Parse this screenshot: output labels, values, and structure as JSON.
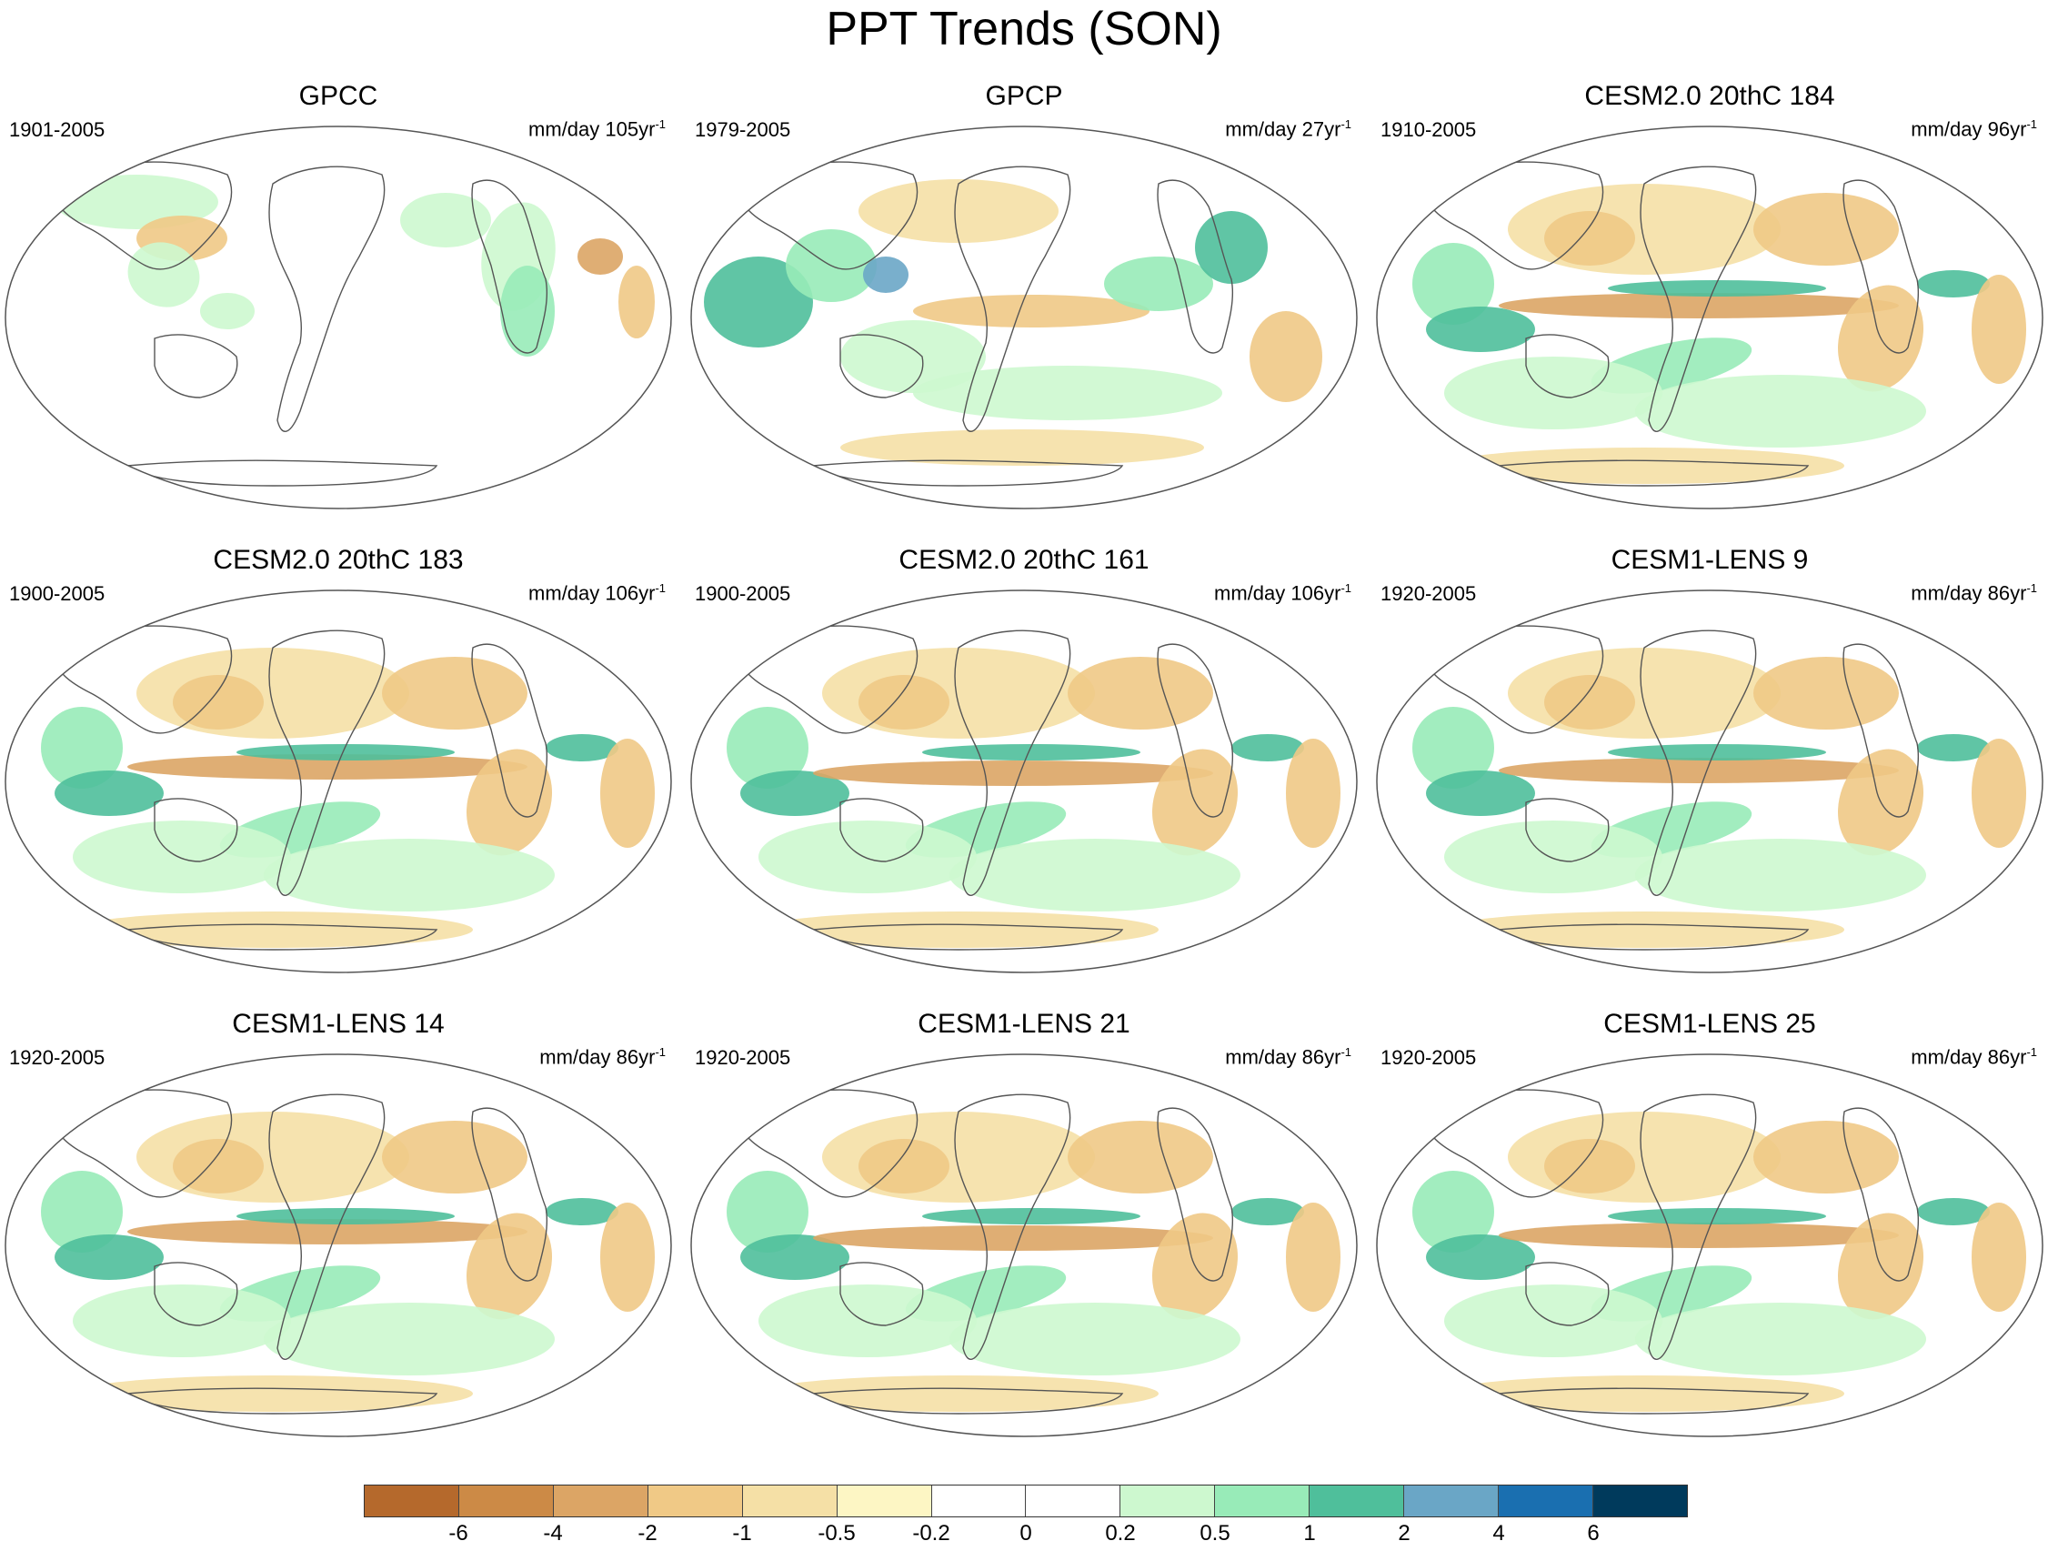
{
  "title": "PPT Trends (SON)",
  "panels": [
    {
      "title": "GPCC",
      "period": "1901-2005",
      "units": "mm/day 105yr",
      "exp": "-1",
      "pattern": "obs-land"
    },
    {
      "title": "GPCP",
      "period": "1979-2005",
      "units": "mm/day 27yr",
      "exp": "-1",
      "pattern": "wet-tropics"
    },
    {
      "title": "CESM2.0 20thC 184",
      "period": "1910-2005",
      "units": "mm/day 96yr",
      "exp": "-1",
      "pattern": "model"
    },
    {
      "title": "CESM2.0 20thC 183",
      "period": "1900-2005",
      "units": "mm/day 106yr",
      "exp": "-1",
      "pattern": "model"
    },
    {
      "title": "CESM2.0 20thC 161",
      "period": "1900-2005",
      "units": "mm/day 106yr",
      "exp": "-1",
      "pattern": "model"
    },
    {
      "title": "CESM1-LENS 9",
      "period": "1920-2005",
      "units": "mm/day 86yr",
      "exp": "-1",
      "pattern": "model"
    },
    {
      "title": "CESM1-LENS 14",
      "period": "1920-2005",
      "units": "mm/day 86yr",
      "exp": "-1",
      "pattern": "model"
    },
    {
      "title": "CESM1-LENS 21",
      "period": "1920-2005",
      "units": "mm/day 86yr",
      "exp": "-1",
      "pattern": "model"
    },
    {
      "title": "CESM1-LENS 25",
      "period": "1920-2005",
      "units": "mm/day 86yr",
      "exp": "-1",
      "pattern": "model"
    }
  ],
  "colorbar": {
    "colors": [
      "#b5692c",
      "#cc8a46",
      "#dca565",
      "#f0c986",
      "#f5e0a6",
      "#fdf6c4",
      "#ffffff",
      "#ffffff",
      "#cdf8cf",
      "#98ebb8",
      "#4fbf9b",
      "#6aa6c6",
      "#1a6fb0",
      "#003a5c"
    ],
    "labels": [
      "-6",
      "-4",
      "-2",
      "-1",
      "-0.5",
      "-0.2",
      "0",
      "0.2",
      "0.5",
      "1",
      "2",
      "4",
      "6"
    ]
  }
}
